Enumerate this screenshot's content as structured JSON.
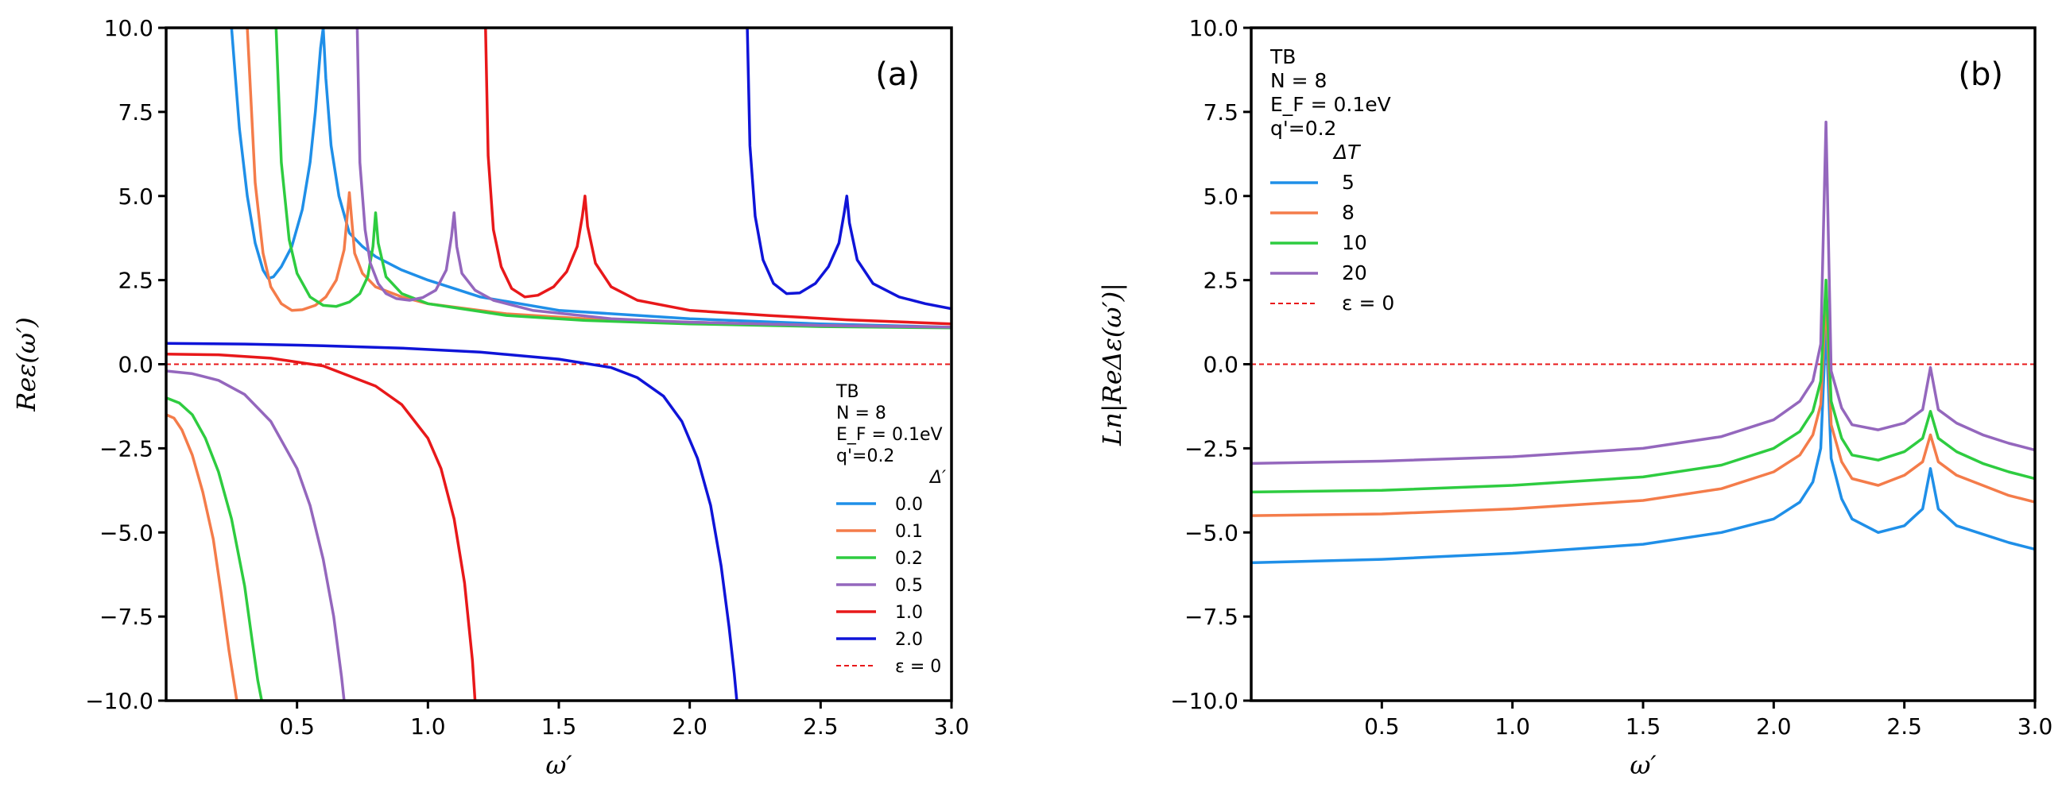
{
  "chart_data": [
    {
      "type": "line",
      "panel_label": "(a)",
      "xlabel": "ω′",
      "ylabel": "Reε(ω′)",
      "xlim": [
        0.0,
        3.0
      ],
      "ylim": [
        -10.0,
        10.0
      ],
      "xticks": [
        "0.5",
        "1.0",
        "1.5",
        "2.0",
        "2.5",
        "3.0"
      ],
      "yticks": [
        "−10.0",
        "−7.5",
        "−5.0",
        "−2.5",
        "0.0",
        "2.5",
        "5.0",
        "7.5",
        "10.0"
      ],
      "legend": {
        "position": "lower-right",
        "header_lines": [
          "TB",
          "N = 8",
          "E_F = 0.1eV",
          "q'=0.2"
        ],
        "title": "Δ′"
      },
      "series": [
        {
          "name": "0.0",
          "color": "#1f8fe8",
          "x": [
            0.25,
            0.28,
            0.31,
            0.34,
            0.37,
            0.39,
            0.41,
            0.44,
            0.48,
            0.52,
            0.55,
            0.57,
            0.59,
            0.6,
            0.61,
            0.63,
            0.66,
            0.7,
            0.75,
            0.8,
            0.9,
            1.0,
            1.2,
            1.5,
            2.0,
            2.5,
            3.0
          ],
          "y": [
            10,
            7.0,
            5.0,
            3.6,
            2.8,
            2.55,
            2.6,
            2.9,
            3.5,
            4.6,
            6.0,
            7.5,
            9.4,
            10,
            8.5,
            6.5,
            5.0,
            3.9,
            3.5,
            3.2,
            2.8,
            2.5,
            2.0,
            1.6,
            1.35,
            1.2,
            1.1
          ]
        },
        {
          "name": "0.1",
          "color": "#f47c4a",
          "x": [
            0.31,
            0.34,
            0.37,
            0.4,
            0.44,
            0.48,
            0.52,
            0.57,
            0.61,
            0.65,
            0.68,
            0.7,
            0.72,
            0.75,
            0.8,
            0.9,
            1.0,
            1.3,
            1.6,
            2.0,
            2.5,
            3.0
          ],
          "y": [
            10,
            5.4,
            3.3,
            2.3,
            1.8,
            1.6,
            1.62,
            1.75,
            2.0,
            2.5,
            3.4,
            5.1,
            3.3,
            2.7,
            2.3,
            2.0,
            1.8,
            1.5,
            1.35,
            1.25,
            1.15,
            1.1
          ]
        },
        {
          "name": "0.2",
          "color": "#2ecc40",
          "x": [
            0.42,
            0.44,
            0.47,
            0.5,
            0.55,
            0.6,
            0.65,
            0.7,
            0.74,
            0.77,
            0.79,
            0.8,
            0.81,
            0.84,
            0.9,
            1.0,
            1.3,
            1.6,
            2.0,
            2.5,
            3.0
          ],
          "y": [
            10,
            6.0,
            3.7,
            2.7,
            2.0,
            1.75,
            1.72,
            1.85,
            2.1,
            2.6,
            3.5,
            4.5,
            3.6,
            2.6,
            2.1,
            1.8,
            1.45,
            1.3,
            1.2,
            1.12,
            1.08
          ]
        },
        {
          "name": "0.5",
          "color": "#9467bd",
          "x": [
            0.73,
            0.74,
            0.76,
            0.78,
            0.81,
            0.84,
            0.88,
            0.93,
            0.98,
            1.03,
            1.07,
            1.09,
            1.1,
            1.11,
            1.13,
            1.18,
            1.25,
            1.4,
            1.7,
            2.0,
            2.5,
            3.0
          ],
          "y": [
            10,
            6.0,
            4.0,
            3.0,
            2.4,
            2.1,
            1.95,
            1.9,
            1.98,
            2.2,
            2.8,
            3.8,
            4.5,
            3.5,
            2.7,
            2.2,
            1.9,
            1.6,
            1.35,
            1.25,
            1.15,
            1.1
          ]
        },
        {
          "name": "1.0",
          "color": "#e8181a",
          "x": [
            1.22,
            1.23,
            1.25,
            1.28,
            1.32,
            1.37,
            1.42,
            1.48,
            1.53,
            1.57,
            1.59,
            1.6,
            1.61,
            1.64,
            1.7,
            1.8,
            2.0,
            2.3,
            2.6,
            3.0
          ],
          "y": [
            10,
            6.2,
            4.0,
            2.9,
            2.25,
            2.0,
            2.05,
            2.3,
            2.75,
            3.5,
            4.4,
            5.0,
            4.1,
            3.0,
            2.3,
            1.9,
            1.6,
            1.45,
            1.32,
            1.2
          ]
        },
        {
          "name": "2.0",
          "color": "#0f14d8",
          "x": [
            2.22,
            2.23,
            2.25,
            2.28,
            2.32,
            2.37,
            2.42,
            2.48,
            2.53,
            2.57,
            2.59,
            2.6,
            2.61,
            2.64,
            2.7,
            2.8,
            2.9,
            3.0
          ],
          "y": [
            10,
            6.5,
            4.4,
            3.1,
            2.4,
            2.1,
            2.12,
            2.4,
            2.9,
            3.6,
            4.5,
            5.0,
            4.2,
            3.1,
            2.4,
            2.0,
            1.8,
            1.65
          ]
        },
        {
          "name": "0.1",
          "color": "#f47c4a",
          "x": [
            0.0,
            0.03,
            0.06,
            0.1,
            0.14,
            0.18,
            0.21,
            0.24,
            0.26,
            0.27
          ],
          "y": [
            -1.5,
            -1.6,
            -1.95,
            -2.7,
            -3.8,
            -5.2,
            -6.8,
            -8.5,
            -9.5,
            -10
          ]
        },
        {
          "name": "0.2",
          "color": "#2ecc40",
          "x": [
            0.0,
            0.05,
            0.1,
            0.15,
            0.2,
            0.25,
            0.3,
            0.33,
            0.35,
            0.365
          ],
          "y": [
            -1.0,
            -1.15,
            -1.5,
            -2.2,
            -3.2,
            -4.6,
            -6.6,
            -8.3,
            -9.4,
            -10
          ]
        },
        {
          "name": "0.5",
          "color": "#9467bd",
          "x": [
            0.0,
            0.1,
            0.2,
            0.3,
            0.4,
            0.5,
            0.55,
            0.6,
            0.64,
            0.67,
            0.68
          ],
          "y": [
            -0.2,
            -0.28,
            -0.48,
            -0.9,
            -1.7,
            -3.1,
            -4.2,
            -5.8,
            -7.5,
            -9.3,
            -10
          ]
        },
        {
          "name": "1.0",
          "color": "#e8181a",
          "x": [
            0.0,
            0.2,
            0.4,
            0.6,
            0.8,
            0.9,
            1.0,
            1.05,
            1.1,
            1.14,
            1.17,
            1.18
          ],
          "y": [
            0.3,
            0.28,
            0.18,
            -0.05,
            -0.65,
            -1.2,
            -2.2,
            -3.1,
            -4.6,
            -6.5,
            -8.8,
            -10
          ]
        },
        {
          "name": "2.0",
          "color": "#0f14d8",
          "x": [
            0.0,
            0.3,
            0.6,
            0.9,
            1.2,
            1.5,
            1.7,
            1.8,
            1.9,
            1.97,
            2.03,
            2.08,
            2.12,
            2.15,
            2.17,
            2.18
          ],
          "y": [
            0.62,
            0.6,
            0.55,
            0.48,
            0.36,
            0.15,
            -0.1,
            -0.4,
            -0.95,
            -1.7,
            -2.8,
            -4.2,
            -6.0,
            -7.8,
            -9.2,
            -10
          ]
        }
      ],
      "legend_entries": [
        {
          "label": "0.0",
          "color": "#1f8fe8"
        },
        {
          "label": "0.1",
          "color": "#f47c4a"
        },
        {
          "label": "0.2",
          "color": "#2ecc40"
        },
        {
          "label": "0.5",
          "color": "#9467bd"
        },
        {
          "label": "1.0",
          "color": "#e8181a"
        },
        {
          "label": "2.0",
          "color": "#0f14d8"
        },
        {
          "label": "ε = 0",
          "color": "#e8181a",
          "dashed": true
        }
      ],
      "reference_line": {
        "y": 0,
        "color": "#e8181a",
        "style": "dashed"
      }
    },
    {
      "type": "line",
      "panel_label": "(b)",
      "xlabel": "ω′",
      "ylabel": "Ln|ReΔε(ω′)|",
      "xlim": [
        0.0,
        3.0
      ],
      "ylim": [
        -10.0,
        10.0
      ],
      "xticks": [
        "0.5",
        "1.0",
        "1.5",
        "2.0",
        "2.5",
        "3.0"
      ],
      "yticks": [
        "−10.0",
        "−7.5",
        "−5.0",
        "−2.5",
        "0.0",
        "2.5",
        "5.0",
        "7.5",
        "10.0"
      ],
      "legend": {
        "position": "upper-left",
        "header_lines": [
          "TB",
          "N = 8",
          "E_F = 0.1eV",
          "q'=0.2"
        ],
        "title": "ΔT"
      },
      "series": [
        {
          "name": "5",
          "color": "#1f8fe8",
          "x": [
            0.0,
            0.5,
            1.0,
            1.5,
            1.8,
            2.0,
            2.1,
            2.15,
            2.18,
            2.2,
            2.22,
            2.26,
            2.3,
            2.4,
            2.5,
            2.57,
            2.6,
            2.63,
            2.7,
            2.8,
            2.9,
            3.0
          ],
          "y": [
            -5.9,
            -5.8,
            -5.62,
            -5.35,
            -5.0,
            -4.6,
            -4.1,
            -3.5,
            -2.5,
            1.2,
            -2.8,
            -4.0,
            -4.6,
            -5.0,
            -4.8,
            -4.3,
            -3.1,
            -4.3,
            -4.8,
            -5.05,
            -5.3,
            -5.5
          ]
        },
        {
          "name": "8",
          "color": "#f47c4a",
          "x": [
            0.0,
            0.5,
            1.0,
            1.5,
            1.8,
            2.0,
            2.1,
            2.15,
            2.18,
            2.2,
            2.22,
            2.26,
            2.3,
            2.4,
            2.5,
            2.57,
            2.6,
            2.63,
            2.7,
            2.8,
            2.9,
            3.0
          ],
          "y": [
            -4.5,
            -4.45,
            -4.3,
            -4.05,
            -3.7,
            -3.2,
            -2.7,
            -2.1,
            -1.2,
            2.0,
            -1.8,
            -2.9,
            -3.4,
            -3.6,
            -3.3,
            -2.9,
            -2.1,
            -2.9,
            -3.3,
            -3.6,
            -3.9,
            -4.1
          ]
        },
        {
          "name": "10",
          "color": "#2ecc40",
          "x": [
            0.0,
            0.5,
            1.0,
            1.5,
            1.8,
            2.0,
            2.1,
            2.15,
            2.18,
            2.2,
            2.22,
            2.26,
            2.3,
            2.4,
            2.5,
            2.57,
            2.6,
            2.63,
            2.7,
            2.8,
            2.9,
            3.0
          ],
          "y": [
            -3.8,
            -3.75,
            -3.6,
            -3.35,
            -3.0,
            -2.5,
            -2.0,
            -1.4,
            -0.5,
            2.5,
            -1.1,
            -2.2,
            -2.7,
            -2.85,
            -2.6,
            -2.2,
            -1.4,
            -2.2,
            -2.6,
            -2.95,
            -3.2,
            -3.4
          ]
        },
        {
          "name": "20",
          "color": "#9467bd",
          "x": [
            0.0,
            0.5,
            1.0,
            1.5,
            1.8,
            2.0,
            2.1,
            2.15,
            2.18,
            2.2,
            2.22,
            2.26,
            2.3,
            2.4,
            2.5,
            2.57,
            2.6,
            2.63,
            2.7,
            2.8,
            2.9,
            3.0
          ],
          "y": [
            -2.95,
            -2.88,
            -2.75,
            -2.5,
            -2.15,
            -1.65,
            -1.1,
            -0.5,
            0.6,
            7.2,
            -0.2,
            -1.3,
            -1.8,
            -1.95,
            -1.75,
            -1.35,
            -0.1,
            -1.35,
            -1.75,
            -2.1,
            -2.35,
            -2.55
          ]
        }
      ],
      "legend_entries": [
        {
          "label": "5",
          "color": "#1f8fe8"
        },
        {
          "label": "8",
          "color": "#f47c4a"
        },
        {
          "label": "10",
          "color": "#2ecc40"
        },
        {
          "label": "20",
          "color": "#9467bd"
        },
        {
          "label": "ε = 0",
          "color": "#e8181a",
          "dashed": true
        }
      ],
      "reference_line": {
        "y": 0,
        "color": "#e8181a",
        "style": "dashed"
      }
    }
  ]
}
